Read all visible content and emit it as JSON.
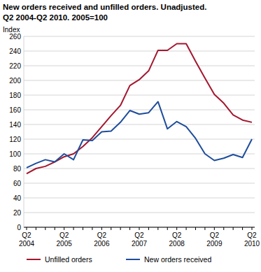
{
  "chart_data": {
    "type": "line",
    "title": "New orders received and unfilled orders. Unadjusted.",
    "subtitle": "Q2 2004-Q2 2010. 2005=100",
    "y_label": "Index",
    "categories": [
      "Q2 2004",
      null,
      null,
      null,
      "Q2 2005",
      null,
      null,
      null,
      "Q2 2006",
      null,
      null,
      null,
      "Q2 2007",
      null,
      null,
      null,
      "Q2 2008",
      null,
      null,
      null,
      "Q2 2009",
      null,
      null,
      null,
      "Q2 2010"
    ],
    "series": [
      {
        "name": "Unfilled orders",
        "color": "#a3172f",
        "values": [
          73,
          80,
          83,
          89,
          96,
          100,
          110,
          122,
          137,
          152,
          166,
          193,
          201,
          213,
          241,
          241,
          250,
          250,
          226,
          203,
          181,
          169,
          153,
          146,
          143
        ]
      },
      {
        "name": "New orders received",
        "color": "#1e4d9b",
        "values": [
          81,
          87,
          92,
          89,
          100,
          92,
          119,
          118,
          130,
          131,
          143,
          159,
          154,
          156,
          171,
          134,
          144,
          137,
          121,
          100,
          91,
          94,
          99,
          95,
          120
        ]
      }
    ],
    "ylim": [
      0,
      260
    ],
    "yticks": [
      0,
      20,
      40,
      60,
      80,
      100,
      120,
      140,
      160,
      180,
      200,
      220,
      240,
      260
    ],
    "grid": true,
    "legend": "bottom"
  }
}
